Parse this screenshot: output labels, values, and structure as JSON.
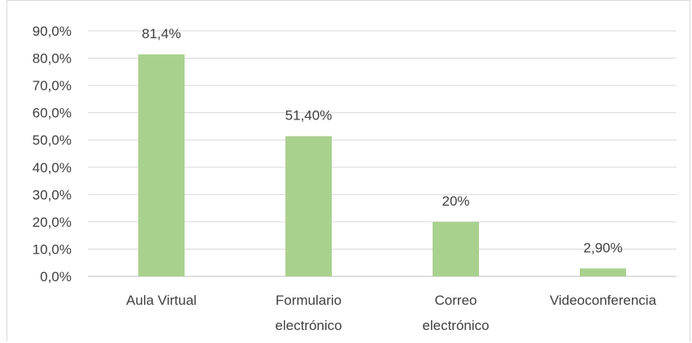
{
  "chart_data": {
    "type": "bar",
    "categories": [
      [
        "Aula Virtual"
      ],
      [
        "Formulario",
        "electrónico"
      ],
      [
        "Correo",
        "electrónico"
      ],
      [
        "Videoconferencia"
      ]
    ],
    "values": [
      0.814,
      0.514,
      0.2,
      0.029
    ],
    "data_labels": [
      "81,4%",
      "51,40%",
      "20%",
      "2,90%"
    ],
    "y_tick_labels": [
      "0,0%",
      "10,0%",
      "20,0%",
      "30,0%",
      "40,0%",
      "50,0%",
      "60,0%",
      "70,0%",
      "80,0%",
      "90,0%"
    ],
    "ylim": [
      0,
      0.9
    ],
    "grid": true,
    "legend": "none",
    "colors": {
      "bar": "#a9d18e",
      "grid": "#d9d9d9",
      "text": "#404040"
    }
  }
}
